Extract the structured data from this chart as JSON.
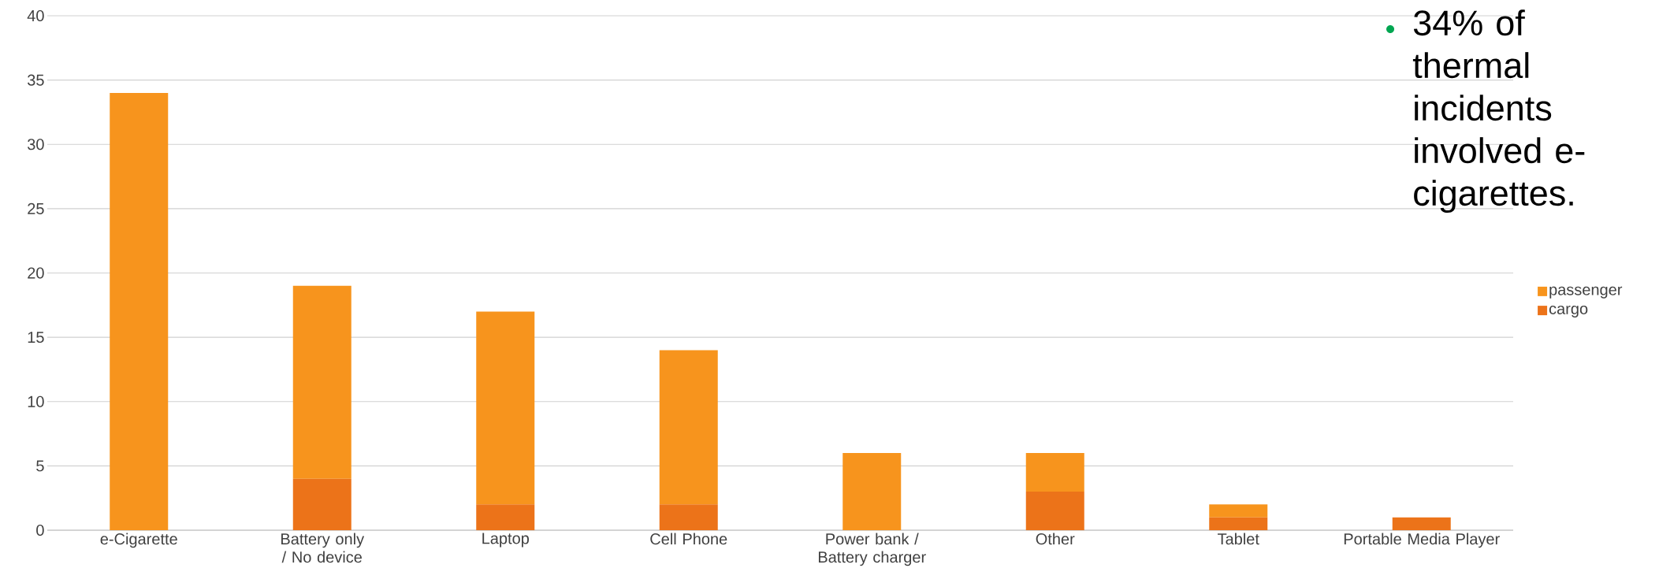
{
  "chart_data": {
    "type": "bar",
    "stacked": true,
    "categories": [
      "e-Cigarette",
      "Battery only / No device",
      "Laptop",
      "Cell Phone",
      "Power bank / Battery charger",
      "Other",
      "Tablet",
      "Portable Media Player"
    ],
    "series": [
      {
        "name": "cargo",
        "color": "#ec7319",
        "values": [
          0,
          4,
          2,
          2,
          0,
          3,
          1,
          1
        ]
      },
      {
        "name": "passenger",
        "color": "#f7941d",
        "values": [
          34,
          15,
          15,
          12,
          6,
          3,
          1,
          0
        ]
      }
    ],
    "ylim": [
      0,
      40
    ],
    "yticks": [
      0,
      5,
      10,
      15,
      20,
      25,
      30,
      35,
      40
    ],
    "grid": "y",
    "legend": "right",
    "annotations": [
      "34% of thermal incidents involved e-cigarettes."
    ]
  }
}
